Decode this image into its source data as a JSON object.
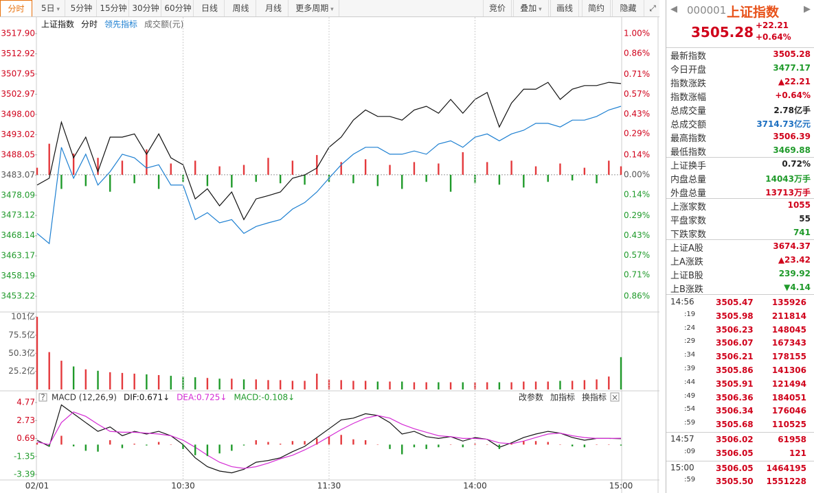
{
  "toolbar": {
    "tabs": [
      {
        "label": "分时",
        "active": true
      },
      {
        "label": "5日",
        "menu": true
      },
      {
        "label": "5分钟"
      },
      {
        "label": "15分钟"
      },
      {
        "label": "30分钟"
      },
      {
        "label": "60分钟"
      },
      {
        "label": "日线"
      },
      {
        "label": "周线"
      },
      {
        "label": "月线"
      },
      {
        "label": "更多周期",
        "menu": true
      }
    ],
    "right": [
      {
        "label": "竞价"
      },
      {
        "label": "叠加",
        "menu": true
      },
      {
        "label": "画线"
      },
      {
        "label": "简约"
      },
      {
        "label": "隐藏"
      }
    ]
  },
  "chart_data": [
    {
      "type": "line",
      "title": "上证指数",
      "volume_label": "成交额(元)",
      "x": [
        0,
        5,
        10,
        15,
        20,
        25,
        30,
        35,
        40,
        45,
        50,
        55,
        60,
        65,
        70,
        75,
        80,
        85,
        90,
        95,
        100,
        105,
        110,
        115,
        120,
        125,
        130,
        135,
        140,
        145,
        150,
        155,
        160,
        165,
        170,
        175,
        180,
        185,
        190,
        195,
        200,
        205,
        210,
        215,
        220,
        225,
        230,
        235,
        240
      ],
      "xlim": [
        0,
        240
      ],
      "ylim": [
        3449.86,
        3517.9
      ],
      "y2lim": [
        -0.957,
        1.0
      ],
      "yticks": [
        {
          "value": 3517.9,
          "label": "3517.90"
        },
        {
          "value": 3512.92,
          "label": "3512.92"
        },
        {
          "value": 3507.95,
          "label": "3507.95"
        },
        {
          "value": 3502.97,
          "label": "3502.97"
        },
        {
          "value": 3498.0,
          "label": "3498.00"
        },
        {
          "value": 3493.02,
          "label": "3493.02"
        },
        {
          "value": 3488.05,
          "label": "3488.05"
        },
        {
          "value": 3483.07,
          "label": "3483.07"
        },
        {
          "value": 3478.09,
          "label": "3478.09"
        },
        {
          "value": 3473.12,
          "label": "3473.12"
        },
        {
          "value": 3468.14,
          "label": "3468.14"
        },
        {
          "value": 3463.17,
          "label": "3463.17"
        },
        {
          "value": 3458.19,
          "label": "3458.19"
        },
        {
          "value": 3453.22,
          "label": "3453.22"
        }
      ],
      "y2ticks": [
        {
          "value": 1.0,
          "label": "1.00%"
        },
        {
          "value": 0.86,
          "label": "0.86%"
        },
        {
          "value": 0.71,
          "label": "0.71%"
        },
        {
          "value": 0.57,
          "label": "0.57%"
        },
        {
          "value": 0.43,
          "label": "0.43%"
        },
        {
          "value": 0.29,
          "label": "0.29%"
        },
        {
          "value": 0.14,
          "label": "0.14%"
        },
        {
          "value": 0,
          "label": "0.00%"
        },
        {
          "value": -0.14,
          "label": "0.14%"
        },
        {
          "value": -0.29,
          "label": "0.29%"
        },
        {
          "value": -0.43,
          "label": "0.43%"
        },
        {
          "value": -0.57,
          "label": "0.57%"
        },
        {
          "value": -0.71,
          "label": "0.71%"
        },
        {
          "value": -0.86,
          "label": "0.86%"
        }
      ],
      "series": [
        {
          "type": "bar",
          "axis": "y2",
          "color": "#e4393c",
          "down_color": "#1f9a2a",
          "values": [
            0.05,
            0.22,
            -0.1,
            0.15,
            -0.08,
            0.12,
            -0.12,
            0.1,
            -0.06,
            0.18,
            -0.1,
            0.08,
            -0.05,
            0.1,
            -0.08,
            0.06,
            -0.09,
            0.07,
            -0.05,
            0.12,
            -0.06,
            0.1,
            -0.07,
            0.14,
            -0.05,
            0.09,
            -0.06,
            0.11,
            -0.08,
            0.07,
            -0.1,
            0.09,
            -0.05,
            0.08,
            -0.12,
            0.16,
            -0.06,
            0.09,
            -0.07,
            0.1,
            -0.09,
            0.06,
            -0.05,
            0.08,
            -0.04,
            0.05,
            -0.06,
            0.1,
            0.06
          ]
        },
        {
          "name": "分时",
          "color": "#111111",
          "values": [
            3480.6,
            3482.3,
            3496.1,
            3487.3,
            3492.4,
            3483.9,
            3492.4,
            3492.4,
            3493.2,
            3488.2,
            3493.2,
            3487.3,
            3485.6,
            3477.2,
            3479.7,
            3475.5,
            3478.9,
            3472.1,
            3477.2,
            3478.0,
            3478.9,
            3482.3,
            3483.1,
            3484.8,
            3489.9,
            3492.4,
            3496.6,
            3499.1,
            3497.5,
            3497.5,
            3496.6,
            3499.1,
            3500.0,
            3498.3,
            3501.7,
            3498.3,
            3501.7,
            3503.4,
            3494.9,
            3500.8,
            3504.2,
            3504.2,
            3505.9,
            3501.7,
            3504.2,
            3505.1,
            3505.1,
            3505.9,
            3505.6
          ]
        },
        {
          "name": "领先指标",
          "color": "#1c7fd1",
          "values": [
            3468.7,
            3466.2,
            3489.9,
            3482.3,
            3488.2,
            3480.6,
            3483.9,
            3488.2,
            3487.3,
            3484.8,
            3485.6,
            3480.6,
            3480.6,
            3472.1,
            3473.8,
            3471.3,
            3472.1,
            3468.7,
            3470.4,
            3471.3,
            3472.1,
            3474.7,
            3476.3,
            3478.9,
            3482.3,
            3485.6,
            3488.2,
            3489.9,
            3489.9,
            3488.2,
            3488.2,
            3489.0,
            3488.2,
            3490.7,
            3491.5,
            3489.9,
            3492.4,
            3493.2,
            3491.5,
            3493.2,
            3494.1,
            3495.8,
            3495.8,
            3494.9,
            3496.6,
            3496.6,
            3497.5,
            3499.1,
            3500.0
          ]
        }
      ]
    },
    {
      "type": "bar",
      "x": [
        0,
        5,
        10,
        15,
        20,
        25,
        30,
        35,
        40,
        45,
        50,
        55,
        60,
        65,
        70,
        75,
        80,
        85,
        90,
        95,
        100,
        105,
        110,
        115,
        120,
        125,
        130,
        135,
        140,
        145,
        150,
        155,
        160,
        165,
        170,
        175,
        180,
        185,
        190,
        195,
        200,
        205,
        210,
        215,
        220,
        225,
        230,
        235,
        240
      ],
      "xlim": [
        0,
        240
      ],
      "ylim": [
        0,
        104
      ],
      "yticks": [
        {
          "value": 101,
          "label": "101亿"
        },
        {
          "value": 75.5,
          "label": "75.5亿"
        },
        {
          "value": 50.3,
          "label": "50.3亿"
        },
        {
          "value": 25.2,
          "label": "25.2亿"
        }
      ],
      "series": [
        {
          "color": "#e4393c",
          "down_color": "#1f9a2a",
          "values": [
            101,
            52,
            40,
            32,
            28,
            26,
            24,
            23,
            22,
            21,
            20,
            19,
            18,
            17,
            16,
            15,
            15,
            14,
            14,
            13,
            13,
            12,
            12,
            22,
            14,
            13,
            12,
            12,
            11,
            11,
            11,
            10,
            10,
            10,
            10,
            10,
            10,
            10,
            10,
            10,
            11,
            11,
            11,
            12,
            12,
            13,
            14,
            18,
            45
          ]
        }
      ]
    },
    {
      "type": "line",
      "title": "MACD (12,26,9)",
      "buttons": [
        "改参数",
        "加指标",
        "换指标"
      ],
      "x": [
        0,
        5,
        10,
        15,
        20,
        25,
        30,
        35,
        40,
        45,
        50,
        55,
        60,
        65,
        70,
        75,
        80,
        85,
        90,
        95,
        100,
        105,
        110,
        115,
        120,
        125,
        130,
        135,
        140,
        145,
        150,
        155,
        160,
        165,
        170,
        175,
        180,
        185,
        190,
        195,
        200,
        205,
        210,
        215,
        220,
        225,
        230,
        235,
        240
      ],
      "xlim": [
        0,
        240
      ],
      "ylim": [
        -4.01,
        5.94
      ],
      "yticks": [
        4.77,
        2.73,
        0.69,
        -1.35,
        -3.39
      ],
      "xticks": [
        {
          "value": 0,
          "label": "02/01"
        },
        {
          "value": 60,
          "label": "10:30"
        },
        {
          "value": 120,
          "label": "11:30"
        },
        {
          "value": 180,
          "label": "14:00"
        },
        {
          "value": 240,
          "label": "15:00"
        }
      ],
      "series": [
        {
          "name": "DIF:0.671↓",
          "color": "#111111",
          "values": [
            0.5,
            -0.2,
            4.5,
            3.5,
            2.5,
            1.5,
            2.0,
            1.0,
            1.5,
            1.2,
            1.5,
            1.0,
            0.0,
            -1.5,
            -2.5,
            -3.0,
            -3.2,
            -2.8,
            -2.0,
            -1.8,
            -1.5,
            -0.8,
            -0.2,
            0.8,
            1.8,
            2.8,
            3.0,
            3.5,
            3.3,
            2.5,
            1.2,
            1.5,
            0.9,
            0.7,
            0.9,
            0.4,
            0.8,
            0.6,
            -0.3,
            0.2,
            0.8,
            1.2,
            1.5,
            1.3,
            0.8,
            0.5,
            0.7,
            0.7,
            0.671
          ]
        },
        {
          "name": "DEA:0.725↓",
          "color": "#d42ad4",
          "values": [
            0.3,
            0.0,
            2.5,
            3.7,
            3.2,
            2.3,
            1.5,
            1.4,
            1.4,
            1.3,
            1.2,
            1.0,
            0.5,
            -0.3,
            -1.2,
            -2.0,
            -2.5,
            -2.7,
            -2.5,
            -2.1,
            -1.6,
            -1.2,
            -0.6,
            0.1,
            0.9,
            1.7,
            2.4,
            3.0,
            3.3,
            3.0,
            2.3,
            1.8,
            1.4,
            1.0,
            0.9,
            0.7,
            0.7,
            0.6,
            0.2,
            0.1,
            0.4,
            0.8,
            1.2,
            1.3,
            1.0,
            0.8,
            0.7,
            0.7,
            0.725
          ]
        },
        {
          "name": "MACD:-0.108↓",
          "type": "bar",
          "color": "#e4393c",
          "down_color": "#1f9a2a",
          "values": [
            0.2,
            -0.2,
            1.0,
            -0.2,
            -0.7,
            -0.8,
            0.5,
            -0.4,
            0.1,
            -0.1,
            0.3,
            0.0,
            -0.5,
            -1.2,
            -1.3,
            -1.0,
            -0.7,
            -0.1,
            0.5,
            0.3,
            0.1,
            0.4,
            0.4,
            0.7,
            0.9,
            1.1,
            0.6,
            0.5,
            0.0,
            -0.5,
            -1.1,
            -0.3,
            -0.5,
            -0.3,
            0.0,
            -0.3,
            0.1,
            0.0,
            -0.5,
            0.1,
            0.4,
            0.4,
            0.3,
            0.0,
            -0.2,
            -0.3,
            0.0,
            0.0,
            -0.108
          ]
        }
      ]
    }
  ],
  "sidebar": {
    "code": "000001",
    "name": "上证指数",
    "price": "3505.28",
    "change": "+22.21",
    "change_pct": "+0.64%",
    "groups": [
      [
        {
          "label": "最新指数",
          "value": "3505.28",
          "color": "#d0021b"
        },
        {
          "label": "今日开盘",
          "value": "3477.17",
          "color": "#1f9a2a"
        },
        {
          "label": "指数涨跌",
          "value": "▲22.21",
          "color": "#d0021b"
        },
        {
          "label": "指数涨幅",
          "value": "+0.64%",
          "color": "#d0021b"
        },
        {
          "label": "总成交量",
          "value": "2.78亿手",
          "color": "#222222"
        },
        {
          "label": "总成交额",
          "value": "3714.73亿元",
          "color": "#1c6fc1"
        },
        {
          "label": "最高指数",
          "value": "3506.39",
          "color": "#d0021b"
        },
        {
          "label": "最低指数",
          "value": "3469.88",
          "color": "#1f9a2a"
        }
      ],
      [
        {
          "label": "上证换手",
          "value": "0.72%",
          "color": "#222222"
        },
        {
          "label": "内盘总量",
          "value": "14043万手",
          "color": "#1f9a2a"
        },
        {
          "label": "外盘总量",
          "value": "13713万手",
          "color": "#d0021b"
        }
      ],
      [
        {
          "label": "上涨家数",
          "value": "1055",
          "color": "#d0021b"
        },
        {
          "label": "平盘家数",
          "value": "55",
          "color": "#222222"
        },
        {
          "label": "下跌家数",
          "value": "741",
          "color": "#1f9a2a"
        }
      ],
      [
        {
          "label": "上证A股",
          "value": "3674.37",
          "color": "#d0021b"
        },
        {
          "label": "上A涨跌",
          "value": "▲23.42",
          "color": "#d0021b"
        },
        {
          "label": "上证B股",
          "value": "239.92",
          "color": "#1f9a2a"
        },
        {
          "label": "上B涨跌",
          "value": "▼4.14",
          "color": "#1f9a2a"
        }
      ]
    ],
    "ticks": [
      [
        [
          "14:56",
          "3505.47",
          "135926"
        ],
        [
          ":19",
          "3505.98",
          "211814"
        ],
        [
          ":24",
          "3506.23",
          "148045"
        ],
        [
          ":29",
          "3506.07",
          "167343"
        ],
        [
          ":34",
          "3506.21",
          "178155"
        ],
        [
          ":39",
          "3505.86",
          "141306"
        ],
        [
          ":44",
          "3505.91",
          "121494"
        ],
        [
          ":49",
          "3506.36",
          "184051"
        ],
        [
          ":54",
          "3506.34",
          "176046"
        ],
        [
          ":59",
          "3505.68",
          "110525"
        ]
      ],
      [
        [
          "14:57",
          "3506.02",
          "61958"
        ],
        [
          ":09",
          "3506.05",
          "121"
        ]
      ],
      [
        [
          "15:00",
          "3506.05",
          "1464195"
        ],
        [
          ":59",
          "3505.50",
          "1551228"
        ]
      ]
    ]
  }
}
